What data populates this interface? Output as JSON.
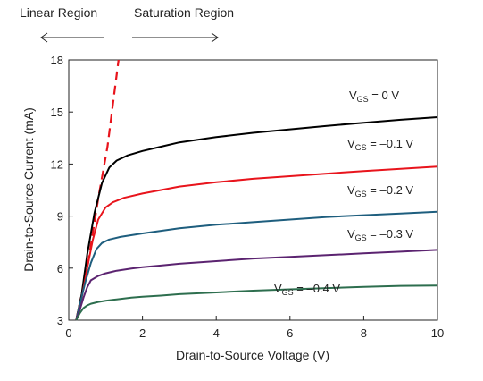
{
  "chart_data": {
    "type": "line",
    "title": "",
    "xlabel": "Drain-to-Source Voltage (V)",
    "ylabel": "Drain-to-Source Current (mA)",
    "xlim": [
      0,
      10
    ],
    "ylim": [
      3,
      18
    ],
    "xticks": [
      "0",
      "2",
      "4",
      "6",
      "8",
      "10"
    ],
    "yticks": [
      "3",
      "6",
      "9",
      "12",
      "15",
      "18"
    ],
    "grid": false,
    "legend": "none",
    "regions": {
      "linear": "Linear Region",
      "saturation": "Saturation Region"
    },
    "boundary": {
      "style": "dashed",
      "color": "#e8141c",
      "x": [
        0.2,
        0.5,
        0.8,
        1.05,
        1.35
      ],
      "y": [
        3.0,
        6.0,
        10.0,
        13.0,
        18.0
      ]
    },
    "series": [
      {
        "name": "VGS = 0 V",
        "label_main": "V",
        "label_sub": "GS",
        "label_rest": " = 0 V",
        "color": "#000000",
        "x": [
          0.2,
          0.35,
          0.5,
          0.7,
          0.9,
          1.1,
          1.3,
          1.6,
          2.0,
          2.5,
          3.0,
          4.0,
          5.0,
          6.0,
          7.0,
          8.0,
          9.0,
          10.0
        ],
        "y": [
          3.0,
          4.5,
          6.8,
          9.2,
          10.9,
          11.8,
          12.2,
          12.5,
          12.75,
          13.0,
          13.25,
          13.55,
          13.8,
          14.0,
          14.2,
          14.38,
          14.55,
          14.7
        ]
      },
      {
        "name": "VGS = –0.1 V",
        "label_main": "V",
        "label_sub": "GS",
        "label_rest": " = –0.1 V",
        "color": "#e8141c",
        "x": [
          0.2,
          0.35,
          0.5,
          0.65,
          0.8,
          1.0,
          1.2,
          1.5,
          2.0,
          2.5,
          3.0,
          4.0,
          5.0,
          6.0,
          7.0,
          8.0,
          9.0,
          10.0
        ],
        "y": [
          3.0,
          4.3,
          6.0,
          7.6,
          8.8,
          9.5,
          9.8,
          10.05,
          10.3,
          10.5,
          10.7,
          10.95,
          11.15,
          11.3,
          11.45,
          11.6,
          11.72,
          11.85
        ]
      },
      {
        "name": "VGS = –0.2 V",
        "label_main": "V",
        "label_sub": "GS",
        "label_rest": " = –0.2 V",
        "color": "#1e5e7e",
        "x": [
          0.2,
          0.3,
          0.45,
          0.6,
          0.75,
          0.9,
          1.1,
          1.4,
          2.0,
          2.5,
          3.0,
          4.0,
          5.0,
          6.0,
          7.0,
          8.0,
          9.0,
          10.0
        ],
        "y": [
          3.0,
          3.9,
          5.2,
          6.3,
          7.1,
          7.45,
          7.65,
          7.8,
          8.0,
          8.15,
          8.3,
          8.5,
          8.65,
          8.8,
          8.95,
          9.05,
          9.15,
          9.25
        ]
      },
      {
        "name": "VGS = –0.3 V",
        "label_main": "V",
        "label_sub": "GS",
        "label_rest": " = –0.3 V",
        "color": "#5b2370",
        "x": [
          0.2,
          0.3,
          0.4,
          0.5,
          0.6,
          0.8,
          1.0,
          1.3,
          1.7,
          2.0,
          2.5,
          3.0,
          4.0,
          5.0,
          6.0,
          7.0,
          8.0,
          9.0,
          10.0
        ],
        "y": [
          3.0,
          3.6,
          4.3,
          4.9,
          5.3,
          5.55,
          5.7,
          5.85,
          5.98,
          6.05,
          6.15,
          6.25,
          6.4,
          6.55,
          6.65,
          6.75,
          6.85,
          6.95,
          7.05
        ]
      },
      {
        "name": "VGS = –0.4 V",
        "label_main": "V",
        "label_sub": "GS",
        "label_rest": " = –0.4 V",
        "color": "#2d6e4e",
        "x": [
          0.2,
          0.3,
          0.4,
          0.5,
          0.6,
          0.8,
          1.0,
          1.3,
          1.7,
          2.0,
          2.5,
          3.0,
          4.0,
          5.0,
          6.0,
          7.0,
          8.0,
          9.0,
          10.0
        ],
        "y": [
          3.0,
          3.4,
          3.7,
          3.85,
          3.95,
          4.05,
          4.12,
          4.2,
          4.3,
          4.35,
          4.42,
          4.5,
          4.6,
          4.7,
          4.78,
          4.85,
          4.92,
          4.98,
          5.0
        ]
      }
    ]
  }
}
